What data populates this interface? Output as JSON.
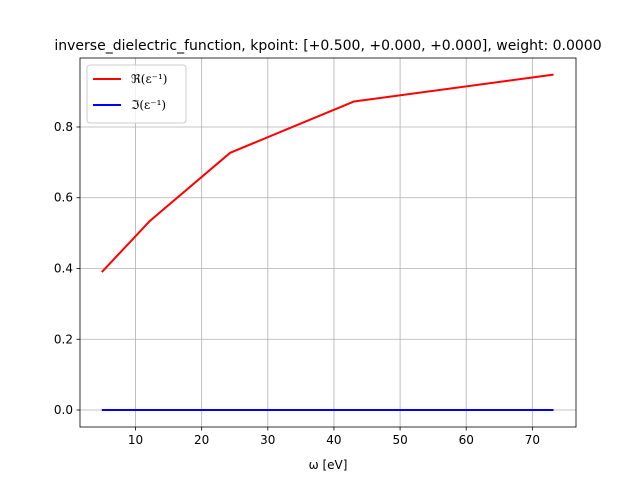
{
  "chart_data": {
    "type": "line",
    "title": "inverse_dielectric_function, kpoint: [+0.500, +0.000, +0.000], weight: 0.0000",
    "xlabel": "ω [eV]",
    "ylabel": "",
    "xlim": [
      1.6,
      76.6
    ],
    "ylim": [
      -0.048,
      0.995
    ],
    "xticks": [
      10,
      20,
      30,
      40,
      50,
      60,
      70
    ],
    "yticks": [
      0.0,
      0.2,
      0.4,
      0.6,
      0.8
    ],
    "xtick_labels": [
      "10",
      "20",
      "30",
      "40",
      "50",
      "60",
      "70"
    ],
    "ytick_labels": [
      "0.0",
      "0.2",
      "0.4",
      "0.6",
      "0.8"
    ],
    "grid": true,
    "legend_position": "top-left",
    "series": [
      {
        "name": "ℜ(ε⁻¹)",
        "color": "#ff0000",
        "x": [
          4.9,
          12.2,
          24.3,
          43.0,
          73.2
        ],
        "values": [
          0.39,
          0.535,
          0.727,
          0.872,
          0.948
        ]
      },
      {
        "name": "ℑ(ε⁻¹)",
        "color": "#0000ff",
        "x": [
          4.9,
          12.2,
          24.3,
          43.0,
          73.2
        ],
        "values": [
          0.0,
          0.0,
          0.0,
          0.0,
          0.0
        ]
      }
    ]
  }
}
